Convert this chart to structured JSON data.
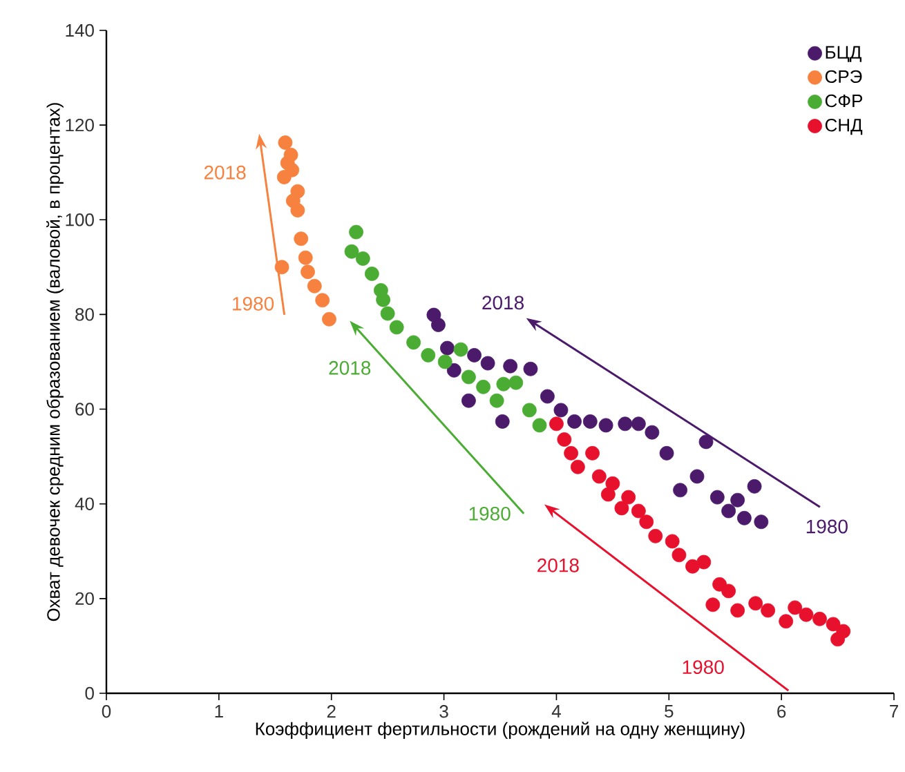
{
  "chart_data": {
    "type": "scatter",
    "xlabel": "Коэффициент фертильности (рождений на одну женщину)",
    "ylabel": "Охват девочек средним образованием (валовой, в процентах)",
    "xlim": [
      0,
      7
    ],
    "xticks": [
      0,
      1,
      2,
      3,
      4,
      5,
      6,
      7
    ],
    "ylim": [
      0,
      140
    ],
    "yticks": [
      0,
      20,
      40,
      60,
      80,
      100,
      120,
      140
    ],
    "legend": "top right",
    "marker": "circle",
    "series": [
      {
        "name": "БЦД",
        "color": "#4b1a6b",
        "x": [
          2.91,
          2.95,
          3.03,
          3.09,
          3.27,
          3.39,
          3.59,
          3.77,
          3.22,
          3.52,
          3.92,
          4.04,
          4.16,
          4.3,
          4.44,
          4.61,
          4.73,
          4.85,
          4.98,
          5.33,
          5.25,
          5.1,
          5.43,
          5.61,
          5.76,
          5.53,
          5.67,
          5.82
        ],
        "values": [
          79.9,
          77.8,
          72.9,
          68.2,
          71.4,
          69.7,
          69.1,
          68.5,
          61.8,
          57.4,
          62.7,
          59.8,
          57.4,
          57.4,
          56.6,
          56.9,
          56.9,
          55.1,
          50.7,
          53.1,
          45.8,
          42.9,
          41.4,
          40.8,
          43.7,
          38.5,
          37.0,
          36.2
        ]
      },
      {
        "name": "СРЭ",
        "color": "#f7813f",
        "x": [
          1.59,
          1.64,
          1.65,
          1.58,
          1.61,
          1.7,
          1.66,
          1.7,
          1.73,
          1.77,
          1.56,
          1.79,
          1.85,
          1.92,
          1.98
        ],
        "values": [
          116.3,
          113.7,
          110.5,
          109,
          112,
          106,
          104,
          102,
          96,
          92,
          90,
          89,
          86,
          83,
          79
        ]
      },
      {
        "name": "СФР",
        "color": "#4aac33",
        "x": [
          2.22,
          2.18,
          2.28,
          2.36,
          2.44,
          2.46,
          2.5,
          2.58,
          2.73,
          2.86,
          3.01,
          3.15,
          3.22,
          3.35,
          3.47,
          3.53,
          3.64,
          3.76,
          3.85
        ],
        "values": [
          97.4,
          93.3,
          91.8,
          88.6,
          85.1,
          83.1,
          80.2,
          77.3,
          74.1,
          71.4,
          70.0,
          72.6,
          66.8,
          64.7,
          61.8,
          65.3,
          65.6,
          59.8,
          56.6
        ]
      },
      {
        "name": "СНД",
        "color": "#e8112d",
        "x": [
          4.0,
          4.07,
          4.13,
          4.19,
          4.32,
          4.38,
          4.5,
          4.46,
          4.64,
          4.58,
          4.73,
          4.8,
          4.88,
          5.03,
          5.09,
          5.21,
          5.31,
          5.45,
          5.53,
          5.39,
          5.61,
          5.77,
          5.88,
          6.04,
          6.12,
          6.22,
          6.34,
          6.46,
          6.55,
          6.5
        ],
        "values": [
          56.9,
          53.6,
          50.7,
          47.8,
          50.7,
          45.8,
          44.3,
          42.0,
          41.4,
          39.1,
          38.5,
          36.2,
          33.2,
          32.1,
          29.2,
          26.8,
          27.7,
          23.0,
          21.6,
          18.7,
          17.5,
          19.0,
          17.5,
          15.2,
          18.1,
          16.6,
          15.7,
          14.6,
          13.1,
          11.4
        ]
      }
    ],
    "annotations": [
      "1980",
      "2018",
      "1980",
      "2018",
      "1980",
      "2018",
      "1980",
      "2018"
    ]
  }
}
